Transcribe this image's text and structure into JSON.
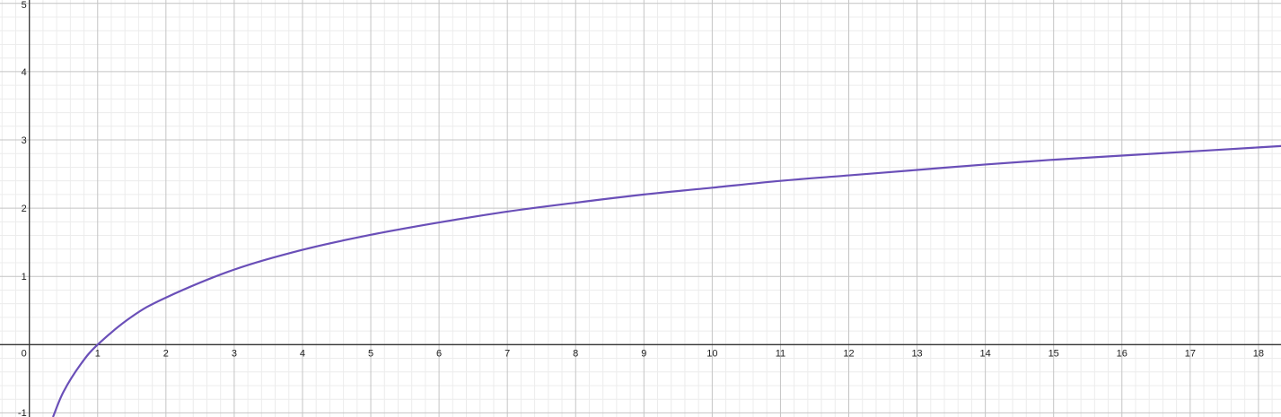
{
  "chart_data": {
    "type": "line",
    "title": "",
    "xlabel": "",
    "ylabel": "",
    "xlim": [
      -0.43,
      18.33
    ],
    "ylim": [
      -1.06,
      5.05
    ],
    "grid": true,
    "minor_grid": true,
    "x_ticks": [
      "0",
      "1",
      "2",
      "3",
      "4",
      "5",
      "6",
      "7",
      "8",
      "9",
      "10",
      "11",
      "12",
      "13",
      "14",
      "15",
      "16",
      "17",
      "18"
    ],
    "y_ticks": [
      "-1",
      "1",
      "2",
      "3",
      "4",
      "5"
    ],
    "series": [
      {
        "color": "#6a4fb8",
        "x": [
          0.35,
          0.5,
          0.75,
          1,
          1.5,
          2,
          3,
          4,
          5,
          6,
          7,
          8,
          9,
          10,
          11,
          12,
          13,
          14,
          15,
          16,
          17,
          18,
          18.33
        ],
        "y": [
          -1.05,
          -0.69,
          -0.29,
          0,
          0.41,
          0.69,
          1.1,
          1.39,
          1.61,
          1.79,
          1.95,
          2.08,
          2.2,
          2.3,
          2.4,
          2.48,
          2.56,
          2.64,
          2.71,
          2.77,
          2.83,
          2.89,
          2.91
        ]
      }
    ]
  }
}
